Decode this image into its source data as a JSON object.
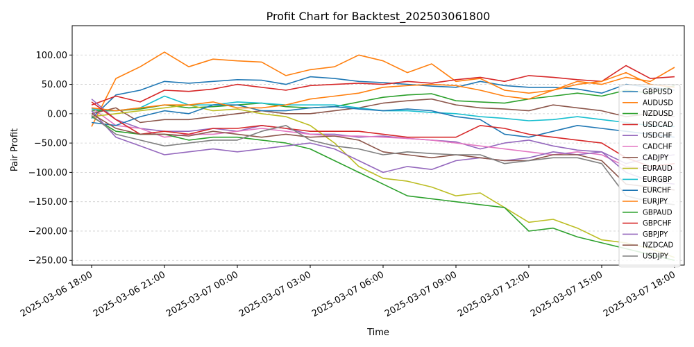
{
  "chart_data": {
    "type": "line",
    "title": "Profit Chart for Backtest_202503061800",
    "xlabel": "Time",
    "ylabel": "Pair Profit",
    "ylim": [
      -258,
      150
    ],
    "xlim_hours": [
      -0.8,
      24.4
    ],
    "grid": "horizontal-dashed",
    "legend_position": "right",
    "x_ticks": [
      {
        "hours": 0,
        "label": "2025-03-06 18:00"
      },
      {
        "hours": 3,
        "label": "2025-03-06 21:00"
      },
      {
        "hours": 6,
        "label": "2025-03-07 00:00"
      },
      {
        "hours": 9,
        "label": "2025-03-07 03:00"
      },
      {
        "hours": 12,
        "label": "2025-03-07 06:00"
      },
      {
        "hours": 15,
        "label": "2025-03-07 09:00"
      },
      {
        "hours": 18,
        "label": "2025-03-07 12:00"
      },
      {
        "hours": 21,
        "label": "2025-03-07 15:00"
      },
      {
        "hours": 24,
        "label": "2025-03-07 18:00"
      }
    ],
    "y_ticks": [
      {
        "value": 100,
        "label": "100.00"
      },
      {
        "value": 50,
        "label": "50.00"
      },
      {
        "value": 0,
        "label": "0.00"
      },
      {
        "value": -50,
        "label": "−50.00"
      },
      {
        "value": -100,
        "label": "−100.00"
      },
      {
        "value": -150,
        "label": "−150.00"
      },
      {
        "value": -200,
        "label": "−200.00"
      },
      {
        "value": -250,
        "label": "−250.00"
      }
    ],
    "x_hours": [
      0,
      1,
      2,
      3,
      4,
      5,
      6,
      7,
      8,
      9,
      10,
      11,
      12,
      13,
      14,
      15,
      16,
      17,
      18,
      19,
      20,
      21,
      22,
      23,
      24
    ],
    "series": [
      {
        "name": "GBPUSD",
        "color": "#1f77b4",
        "values": [
          -8,
          32,
          40,
          55,
          52,
          55,
          58,
          57,
          50,
          63,
          60,
          55,
          53,
          50,
          47,
          45,
          55,
          48,
          45,
          45,
          42,
          35,
          50,
          45,
          40
        ]
      },
      {
        "name": "AUDUSD",
        "color": "#ff7f0e",
        "values": [
          -22,
          60,
          80,
          105,
          80,
          93,
          90,
          88,
          65,
          75,
          80,
          100,
          90,
          70,
          85,
          55,
          60,
          40,
          35,
          40,
          55,
          50,
          62,
          55,
          79
        ]
      },
      {
        "name": "NZDUSD",
        "color": "#2ca02c",
        "values": [
          5,
          5,
          8,
          15,
          10,
          12,
          15,
          18,
          12,
          10,
          12,
          20,
          28,
          32,
          34,
          22,
          20,
          18,
          25,
          30,
          35,
          30,
          40,
          35,
          48
        ]
      },
      {
        "name": "USDCAD",
        "color": "#d62728",
        "values": [
          15,
          30,
          20,
          40,
          38,
          42,
          50,
          45,
          40,
          48,
          50,
          52,
          50,
          55,
          52,
          58,
          62,
          55,
          65,
          62,
          58,
          55,
          82,
          60,
          63
        ]
      },
      {
        "name": "USDCHF",
        "color": "#9467bd",
        "values": [
          25,
          -10,
          -25,
          -30,
          -30,
          -25,
          -30,
          -20,
          -25,
          -35,
          -35,
          -40,
          -38,
          -42,
          -45,
          -48,
          -60,
          -50,
          -45,
          -55,
          -62,
          -65,
          -85,
          -75,
          -70
        ]
      },
      {
        "name": "CADCHF",
        "color": "#e377c2",
        "values": [
          10,
          -20,
          -25,
          -40,
          -35,
          -35,
          -30,
          -25,
          -30,
          -35,
          -38,
          -38,
          -40,
          -42,
          -45,
          -50,
          -55,
          -60,
          -65,
          -70,
          -65,
          -70,
          -90,
          -95,
          -95
        ]
      },
      {
        "name": "CADJPY",
        "color": "#8c564b",
        "values": [
          0,
          10,
          -15,
          -10,
          -10,
          -5,
          0,
          5,
          0,
          0,
          5,
          10,
          18,
          22,
          25,
          15,
          10,
          8,
          5,
          15,
          10,
          5,
          -5,
          0,
          -5
        ]
      },
      {
        "name": "EURAUD",
        "color": "#bcbd22",
        "values": [
          -5,
          0,
          5,
          10,
          15,
          5,
          8,
          0,
          -5,
          -20,
          -50,
          -90,
          -110,
          -115,
          -125,
          -140,
          -135,
          -160,
          -185,
          -180,
          -195,
          -215,
          -220,
          -230,
          -245
        ]
      },
      {
        "name": "EURGBP",
        "color": "#17becf",
        "values": [
          8,
          5,
          10,
          30,
          15,
          15,
          20,
          18,
          15,
          15,
          15,
          10,
          5,
          5,
          2,
          0,
          -5,
          -8,
          -12,
          -10,
          -5,
          -10,
          -15,
          -20,
          -22
        ]
      },
      {
        "name": "EURCHF",
        "color": "#1f77b4",
        "values": [
          -15,
          -20,
          -5,
          5,
          0,
          15,
          15,
          5,
          5,
          10,
          12,
          8,
          5,
          8,
          5,
          -5,
          -10,
          -35,
          -40,
          -30,
          -20,
          -25,
          -30,
          -35,
          -40
        ]
      },
      {
        "name": "EURJPY",
        "color": "#ff7f0e",
        "values": [
          10,
          5,
          10,
          15,
          15,
          20,
          10,
          10,
          15,
          25,
          30,
          35,
          45,
          48,
          50,
          48,
          40,
          30,
          25,
          40,
          50,
          55,
          70,
          50,
          45
        ]
      },
      {
        "name": "GBPAUD",
        "color": "#2ca02c",
        "values": [
          -5,
          -30,
          -35,
          -35,
          -45,
          -40,
          -40,
          -45,
          -50,
          -60,
          -80,
          -100,
          -120,
          -140,
          -145,
          -150,
          -155,
          -160,
          -200,
          -195,
          -210,
          -220,
          -230,
          -240,
          -250
        ]
      },
      {
        "name": "GBPCHF",
        "color": "#d62728",
        "values": [
          20,
          -10,
          -35,
          -30,
          -35,
          -25,
          -25,
          -20,
          -25,
          -30,
          -30,
          -30,
          -35,
          -40,
          -40,
          -40,
          -20,
          -25,
          -35,
          -40,
          -45,
          -50,
          -75,
          -90,
          -85
        ]
      },
      {
        "name": "GBPJPY",
        "color": "#9467bd",
        "values": [
          5,
          -40,
          -55,
          -70,
          -65,
          -60,
          -65,
          -60,
          -55,
          -50,
          -60,
          -80,
          -100,
          -90,
          -95,
          -80,
          -75,
          -80,
          -75,
          -65,
          -70,
          -65,
          -100,
          -115,
          -120
        ]
      },
      {
        "name": "NZDCAD",
        "color": "#8c564b",
        "values": [
          0,
          -25,
          -35,
          -35,
          -38,
          -30,
          -35,
          -40,
          -35,
          -40,
          -38,
          -45,
          -65,
          -70,
          -75,
          -70,
          -75,
          -80,
          -80,
          -70,
          -70,
          -80,
          -120,
          -125,
          -130
        ]
      },
      {
        "name": "USDJPY",
        "color": "#7f7f7f",
        "values": [
          -3,
          -35,
          -45,
          -55,
          -50,
          -45,
          -45,
          -30,
          -20,
          -45,
          -55,
          -60,
          -70,
          -65,
          -68,
          -70,
          -70,
          -85,
          -80,
          -75,
          -75,
          -85,
          -140,
          -150,
          -155
        ]
      }
    ]
  }
}
